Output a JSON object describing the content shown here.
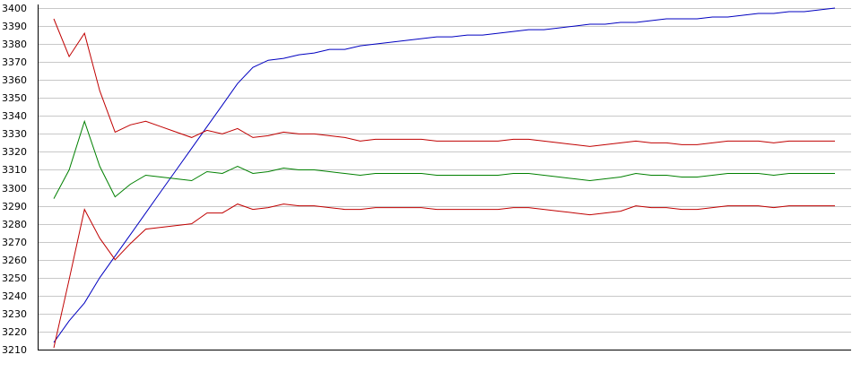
{
  "chart_data": {
    "type": "line",
    "title": "",
    "xlabel": "",
    "ylabel": "",
    "ylim": [
      3210,
      3400
    ],
    "yticks": [
      3210,
      3220,
      3230,
      3240,
      3250,
      3260,
      3270,
      3280,
      3290,
      3300,
      3310,
      3320,
      3330,
      3340,
      3350,
      3360,
      3370,
      3380,
      3390,
      3400
    ],
    "grid": true,
    "legend": "none",
    "x": [
      1,
      2,
      3,
      4,
      5,
      6,
      7,
      8,
      9,
      10,
      11,
      12,
      13,
      14,
      15,
      16,
      17,
      18,
      19,
      20,
      21,
      22,
      23,
      24,
      25,
      26,
      27,
      28,
      29,
      30,
      31,
      32,
      33,
      34,
      35,
      36,
      37,
      38,
      39,
      40,
      41,
      42,
      43,
      44,
      45,
      46,
      47,
      48,
      49,
      50,
      51,
      52
    ],
    "series": [
      {
        "color": "#0000c0",
        "values": [
          3214,
          3226,
          3236,
          3250,
          3262,
          3274,
          3286,
          3298,
          3310,
          3322,
          3334,
          3346,
          3358,
          3367,
          3371,
          3372,
          3374,
          3375,
          3377,
          3377,
          3379,
          3380,
          3381,
          3382,
          3383,
          3384,
          3384,
          3385,
          3385,
          3386,
          3387,
          3388,
          3388,
          3389,
          3390,
          3391,
          3391,
          3392,
          3392,
          3393,
          3394,
          3394,
          3394,
          3395,
          3395,
          3396,
          3397,
          3397,
          3398,
          3398,
          3399,
          3400
        ]
      },
      {
        "color": "#c00000",
        "values": [
          3394,
          3373,
          3386,
          3354,
          3331,
          3335,
          3337,
          3334,
          3331,
          3328,
          3332,
          3330,
          3333,
          3328,
          3329,
          3331,
          3330,
          3330,
          3329,
          3328,
          3326,
          3327,
          3327,
          3327,
          3327,
          3326,
          3326,
          3326,
          3326,
          3326,
          3327,
          3327,
          3326,
          3325,
          3324,
          3323,
          3324,
          3325,
          3326,
          3325,
          3325,
          3324,
          3324,
          3325,
          3326,
          3326,
          3326,
          3325,
          3326,
          3326,
          3326,
          3326
        ]
      },
      {
        "color": "#008000",
        "values": [
          3294,
          3310,
          3337,
          3312,
          3295,
          3302,
          3307,
          3306,
          3305,
          3304,
          3309,
          3308,
          3312,
          3308,
          3309,
          3311,
          3310,
          3310,
          3309,
          3308,
          3307,
          3308,
          3308,
          3308,
          3308,
          3307,
          3307,
          3307,
          3307,
          3307,
          3308,
          3308,
          3307,
          3306,
          3305,
          3304,
          3305,
          3306,
          3308,
          3307,
          3307,
          3306,
          3306,
          3307,
          3308,
          3308,
          3308,
          3307,
          3308,
          3308,
          3308,
          3308
        ]
      },
      {
        "color": "#c00000",
        "values": [
          3211,
          3249,
          3288,
          3272,
          3260,
          3269,
          3277,
          3278,
          3279,
          3280,
          3286,
          3286,
          3291,
          3288,
          3289,
          3291,
          3290,
          3290,
          3289,
          3288,
          3288,
          3289,
          3289,
          3289,
          3289,
          3288,
          3288,
          3288,
          3288,
          3288,
          3289,
          3289,
          3288,
          3287,
          3286,
          3285,
          3286,
          3287,
          3290,
          3289,
          3289,
          3288,
          3288,
          3289,
          3290,
          3290,
          3290,
          3289,
          3290,
          3290,
          3290,
          3290
        ]
      }
    ]
  }
}
